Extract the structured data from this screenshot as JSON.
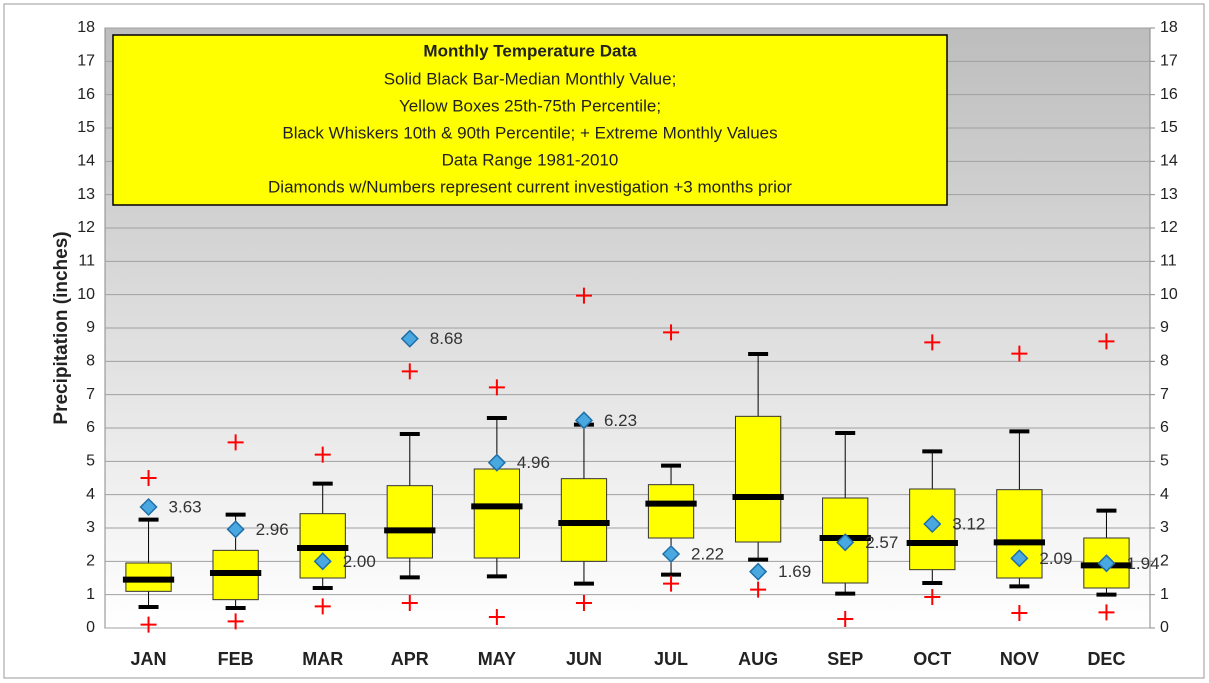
{
  "chart_data": {
    "type": "box",
    "title": "Monthly Temperature Data",
    "annotations": [
      "Solid Black Bar-Median Monthly Value;",
      "Yellow Boxes 25th-75th Percentile;",
      "Black Whiskers 10th & 90th Percentile; + Extreme Monthly Values",
      "Data Range 1981-2010",
      "Diamonds w/Numbers represent current investigation +3 months prior"
    ],
    "y_label": "Precipitation (inches)",
    "categories": [
      "JAN",
      "FEB",
      "MAR",
      "APR",
      "MAY",
      "JUN",
      "JUL",
      "AUG",
      "SEP",
      "OCT",
      "NOV",
      "DEC"
    ],
    "whisker_low": [
      0.63,
      0.6,
      1.2,
      1.52,
      1.55,
      1.33,
      1.6,
      2.05,
      1.03,
      1.35,
      1.25,
      1.0
    ],
    "q1": [
      1.1,
      0.85,
      1.5,
      2.1,
      2.1,
      2.0,
      2.7,
      2.58,
      1.35,
      1.75,
      1.5,
      1.2
    ],
    "median": [
      1.45,
      1.65,
      2.4,
      2.93,
      3.65,
      3.15,
      3.73,
      3.93,
      2.7,
      2.55,
      2.57,
      1.88
    ],
    "q3": [
      1.95,
      2.33,
      3.43,
      4.27,
      4.77,
      4.48,
      4.3,
      6.35,
      3.9,
      4.17,
      4.15,
      2.7
    ],
    "whisker_high": [
      3.25,
      3.4,
      4.33,
      5.82,
      6.3,
      6.1,
      4.87,
      8.22,
      5.85,
      5.3,
      5.9,
      3.52
    ],
    "min": [
      0.1,
      0.2,
      0.65,
      0.75,
      0.33,
      0.75,
      1.33,
      1.15,
      0.27,
      0.93,
      0.45,
      0.47
    ],
    "max": [
      4.5,
      5.57,
      5.2,
      7.7,
      7.22,
      9.97,
      8.87,
      null,
      null,
      8.57,
      8.23,
      8.6
    ],
    "current": {
      "values": [
        3.63,
        2.96,
        2.0,
        8.68,
        4.96,
        6.23,
        2.22,
        1.69,
        2.57,
        3.12,
        2.09,
        1.94
      ],
      "value_labels": [
        "3.63",
        "2.96",
        "2.00",
        "8.68",
        "4.96",
        "6.23",
        "2.22",
        "1.69",
        "2.57",
        "3.12",
        "2.09",
        "1.94"
      ]
    },
    "box_color": "#ffff00",
    "median_color": "#000000",
    "extreme_color": "#ff0000",
    "diamond_color": "#4aa8e0",
    "ylim": [
      0,
      18
    ],
    "yticks": [
      0,
      1,
      2,
      3,
      4,
      5,
      6,
      7,
      8,
      9,
      10,
      11,
      12,
      13,
      14,
      15,
      16,
      17,
      18
    ],
    "y2lim": [
      0,
      18
    ],
    "y2ticks": [
      0,
      1,
      2,
      3,
      4,
      5,
      6,
      7,
      8,
      9,
      10,
      11,
      12,
      13,
      14,
      15,
      16,
      17,
      18
    ],
    "grid": true
  }
}
